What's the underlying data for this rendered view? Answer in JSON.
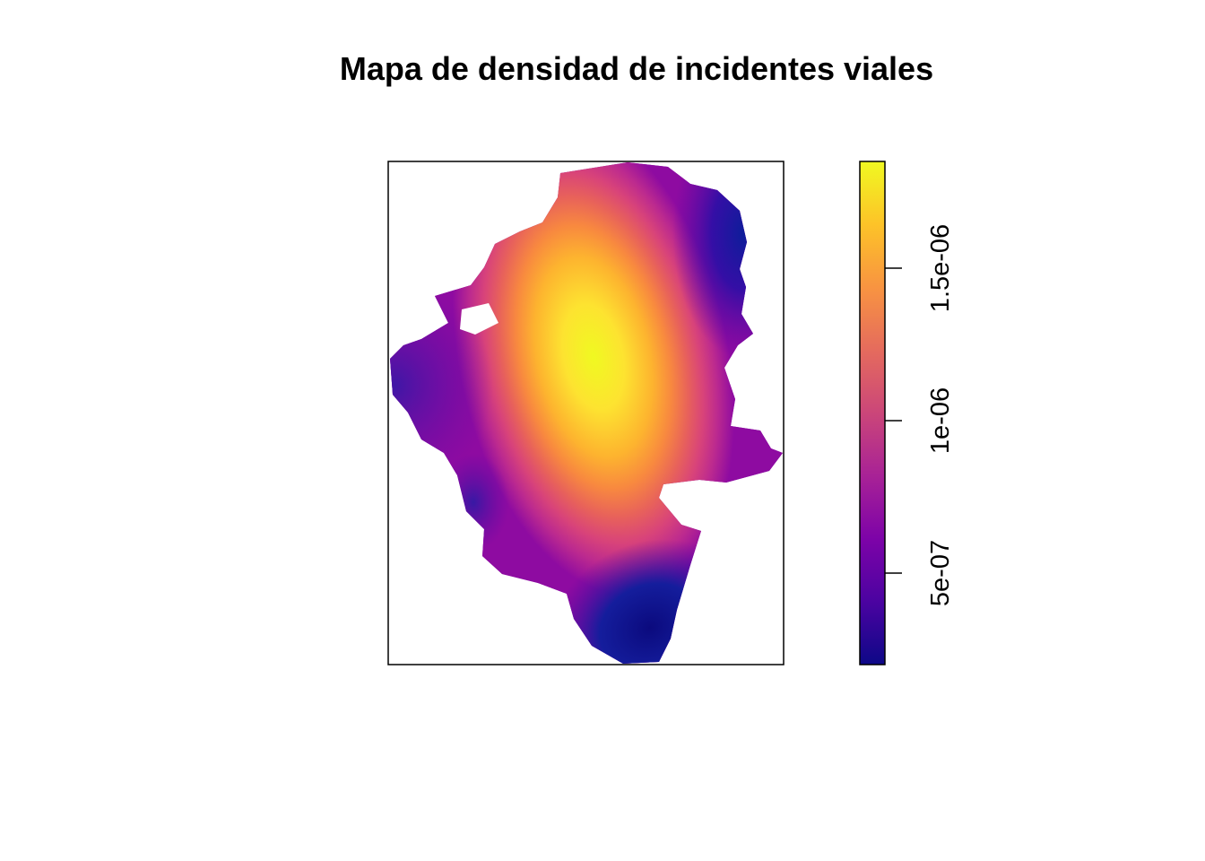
{
  "title": "Mapa de densidad de incidentes viales",
  "colorbar": {
    "palette": [
      "#0D0887",
      "#4B03A1",
      "#7D03A8",
      "#A82296",
      "#CB4679",
      "#E56B5D",
      "#F89441",
      "#FDC328",
      "#F0F921"
    ],
    "range": [
      2e-07,
      1.85e-06
    ],
    "ticks": [
      {
        "value": 5e-07,
        "label": "5e-07"
      },
      {
        "value": 1e-06,
        "label": "1e-06"
      },
      {
        "value": 1.5e-06,
        "label": "1.5e-06"
      }
    ]
  }
}
